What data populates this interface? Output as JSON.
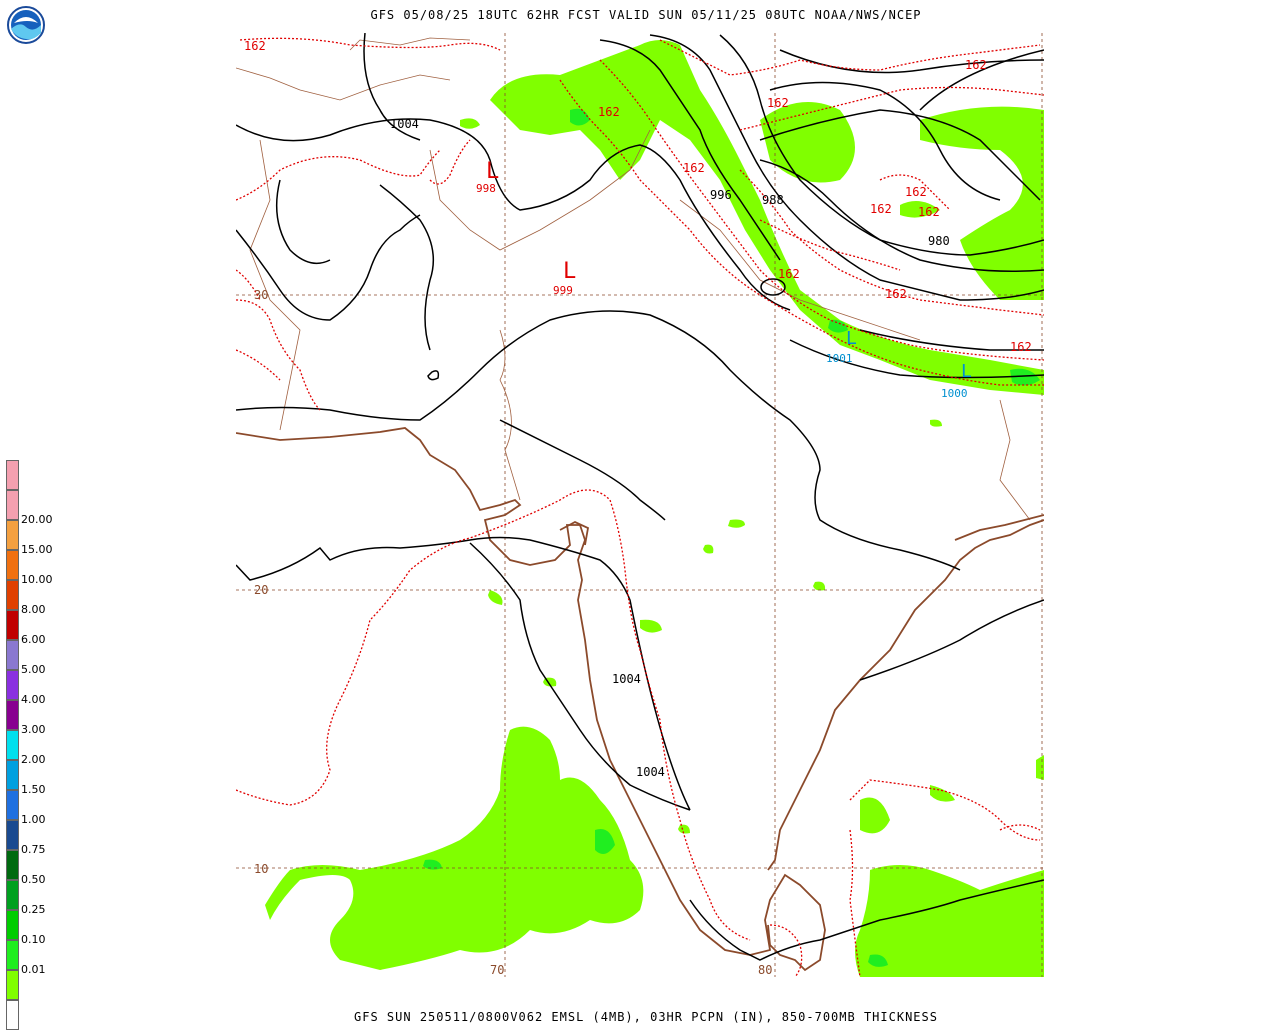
{
  "header": {
    "title": "GFS 05/08/25 18UTC 62HR FCST VALID SUN 05/11/25 08UTC NOAA/NWS/NCEP"
  },
  "footer": {
    "caption": "GFS SUN 250511/0800V062 EMSL (4MB), 03HR PCPN (IN), 850-700MB THICKNESS"
  },
  "logo": {
    "label": "NOAA"
  },
  "legend": {
    "entries": [
      {
        "label": "",
        "color": "#f4a0b0"
      },
      {
        "label": "20.00",
        "color": "#f4a0b0"
      },
      {
        "label": "15.00",
        "color": "#f4a040"
      },
      {
        "label": "10.00",
        "color": "#f07010"
      },
      {
        "label": "8.00",
        "color": "#e04000"
      },
      {
        "label": "6.00",
        "color": "#c00000"
      },
      {
        "label": "5.00",
        "color": "#8a78d0"
      },
      {
        "label": "4.00",
        "color": "#8a30e0"
      },
      {
        "label": "3.00",
        "color": "#880090"
      },
      {
        "label": "2.00",
        "color": "#00e0ee"
      },
      {
        "label": "1.50",
        "color": "#00a0e0"
      },
      {
        "label": "1.00",
        "color": "#2070e0"
      },
      {
        "label": "0.75",
        "color": "#1a4a90"
      },
      {
        "label": "0.50",
        "color": "#006a10"
      },
      {
        "label": "0.25",
        "color": "#00a020"
      },
      {
        "label": "0.10",
        "color": "#00cc00"
      },
      {
        "label": "0.01",
        "color": "#20ee20"
      },
      {
        "label": "",
        "color": "#80ff00"
      },
      {
        "label": "",
        "color": "#ffffff"
      }
    ]
  },
  "map": {
    "lat_labels": [
      "30",
      "20",
      "10"
    ],
    "lon_labels": [
      "70",
      "80"
    ],
    "isobar_labels": [
      "1004",
      "996",
      "988",
      "980",
      "1004",
      "1004"
    ],
    "thickness_labels": [
      "162",
      "162",
      "162",
      "162",
      "162",
      "162",
      "162",
      "162",
      "162",
      "162",
      "162"
    ],
    "low_centers": [
      {
        "symbol": "L",
        "value": "998"
      },
      {
        "symbol": "L",
        "value": "999"
      },
      {
        "symbol": "L",
        "value": "1001"
      },
      {
        "symbol": "L",
        "value": "1000"
      }
    ],
    "colors": {
      "isobar": "#000000",
      "thickness": "#e00000",
      "coast": "#8b4a2b",
      "grid": "#8b4a2b",
      "precip_light": "#80ff00",
      "precip_mid": "#20ee20",
      "low_red": "#e00000",
      "low_blue": "#0090d0"
    }
  }
}
